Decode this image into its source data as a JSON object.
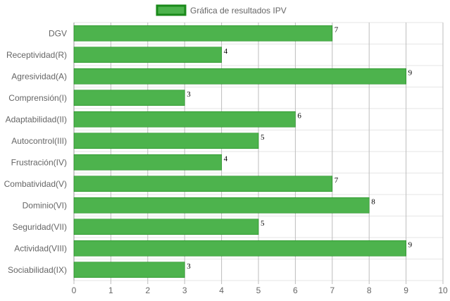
{
  "chart_data": {
    "type": "bar",
    "orientation": "horizontal",
    "categories": [
      "DGV",
      "Receptividad(R)",
      "Agresividad(A)",
      "Comprensión(I)",
      "Adaptabilidad(II)",
      "Autocontrol(III)",
      "Frustración(IV)",
      "Combatividad(V)",
      "Dominio(VI)",
      "Seguridad(VII)",
      "Actividad(VIII)",
      "Sociabilidad(IX)"
    ],
    "series": [
      {
        "name": "Gráfica de resultados IPV",
        "values": [
          7,
          4,
          9,
          3,
          6,
          5,
          4,
          7,
          8,
          5,
          9,
          3
        ],
        "color": "#4db34d",
        "border_color": "#1a8a1a"
      }
    ],
    "xlim": [
      0,
      10
    ],
    "x_ticks": [
      "0",
      "1",
      "2",
      "3",
      "4",
      "5",
      "6",
      "7",
      "8",
      "9",
      "10"
    ],
    "grid": true,
    "legend_position": "top-center",
    "data_labels": true
  }
}
